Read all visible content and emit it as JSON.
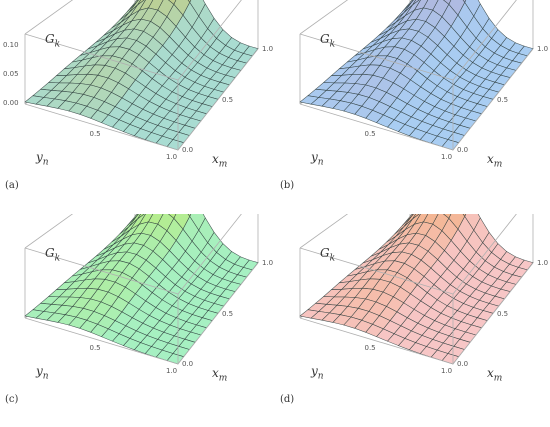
{
  "chart_data": [
    {
      "type": "surface3d",
      "panel_label": "(a)",
      "zlabel": "G",
      "zlabel_sub": "k",
      "xlabel": "x",
      "xlabel_sub": "m",
      "ylabel": "y",
      "ylabel_sub": "n",
      "z_ticks": [
        "0.10",
        "0.05",
        "0.00"
      ],
      "x_ticks": [
        "1.0",
        "0.5",
        "0.0"
      ],
      "y_ticks": [
        "0.5",
        "1.0"
      ],
      "zlim": [
        0,
        0.12
      ],
      "surface_color": "#a9dcd2",
      "ridge_color": "#d4c046"
    },
    {
      "type": "surface3d",
      "panel_label": "(b)",
      "zlabel": "G",
      "zlabel_sub": "k",
      "xlabel": "x",
      "xlabel_sub": "m",
      "ylabel": "y",
      "ylabel_sub": "n",
      "z_ticks": [],
      "x_ticks": [
        "1.0",
        "0.5",
        "0.0"
      ],
      "y_ticks": [
        "0.5",
        "1.0"
      ],
      "zlim": [
        0,
        0.12
      ],
      "surface_color": "#a9cdf2",
      "ridge_color": "#b8a0c8"
    },
    {
      "type": "surface3d",
      "panel_label": "(c)",
      "zlabel": "G",
      "zlabel_sub": "k",
      "xlabel": "x",
      "xlabel_sub": "m",
      "ylabel": "y",
      "ylabel_sub": "n",
      "z_ticks": [],
      "x_ticks": [
        "1.0",
        "0.5",
        "0.0"
      ],
      "y_ticks": [
        "0.5",
        "1.0"
      ],
      "zlim": [
        0,
        0.12
      ],
      "surface_color": "#a6f0c2",
      "ridge_color": "#c9e84a"
    },
    {
      "type": "surface3d",
      "panel_label": "(d)",
      "zlabel": "G",
      "zlabel_sub": "k",
      "xlabel": "x",
      "xlabel_sub": "m",
      "ylabel": "y",
      "ylabel_sub": "n",
      "z_ticks": [],
      "x_ticks": [
        "1.0",
        "0.5",
        "0.0"
      ],
      "y_ticks": [
        "0.5",
        "1.0"
      ],
      "zlim": [
        0,
        0.12
      ],
      "surface_color": "#f7c6c6",
      "ridge_color": "#f0a050"
    }
  ]
}
